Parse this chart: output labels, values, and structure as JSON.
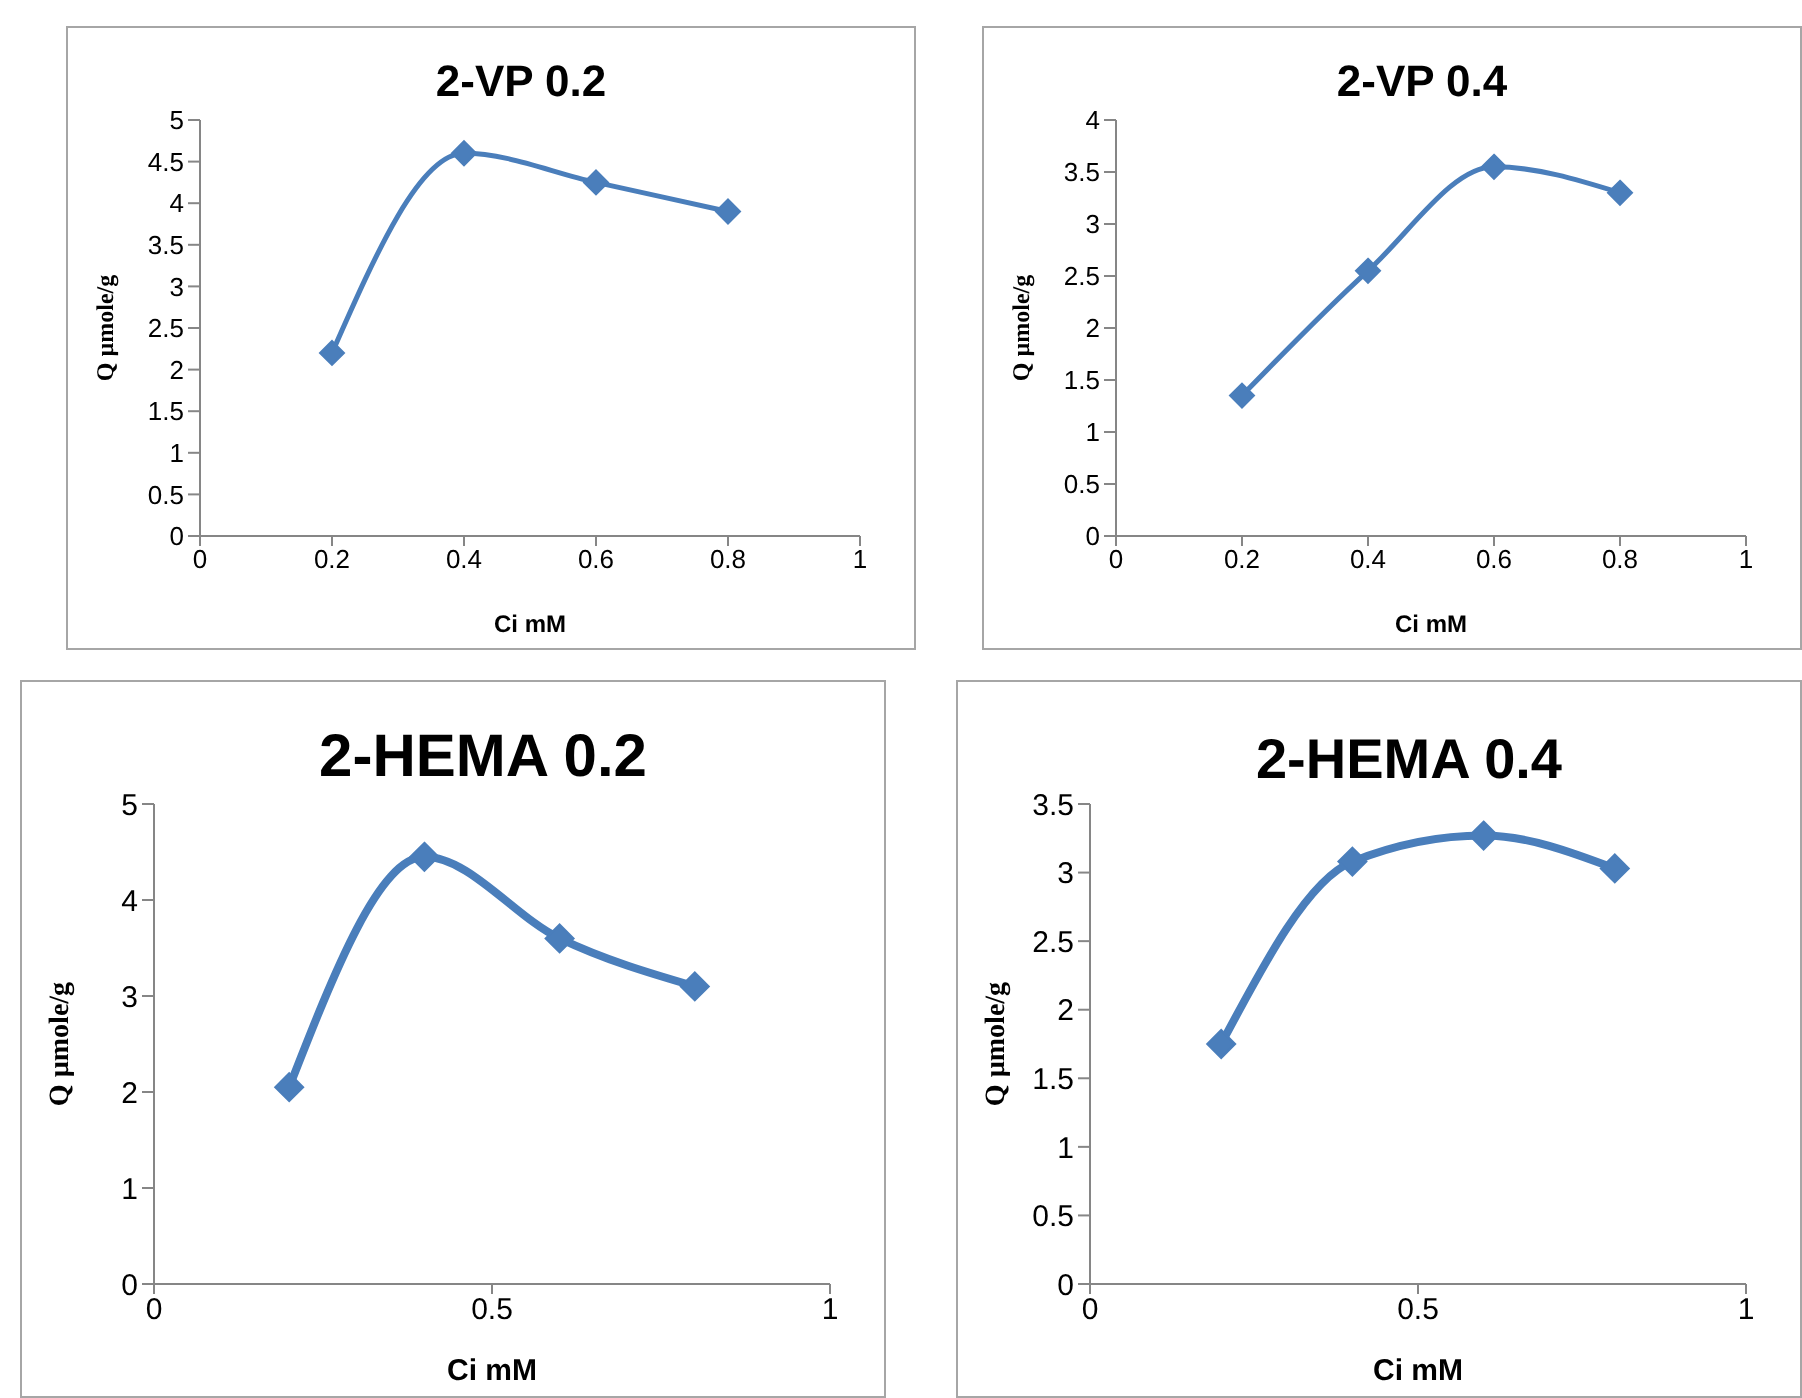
{
  "chart_data": [
    {
      "type": "line",
      "title": "2-VP 0.2",
      "xlabel": "Ci mM",
      "ylabel": "Q µmole/g",
      "x": [
        0.2,
        0.4,
        0.6,
        0.8
      ],
      "series": [
        {
          "color": "#4a7ebb",
          "values": [
            2.2,
            4.6,
            4.25,
            3.9
          ]
        }
      ],
      "xlim": [
        0,
        1
      ],
      "xticks": [
        0,
        0.2,
        0.4,
        0.6,
        0.8,
        1
      ],
      "ylim": [
        0,
        5
      ],
      "yticks": [
        0,
        0.5,
        1,
        1.5,
        2,
        2.5,
        3,
        3.5,
        4,
        4.5,
        5
      ],
      "marker": "diamond",
      "line_style": "solid",
      "grid": false,
      "legend": false
    },
    {
      "type": "line",
      "title": "2-VP 0.4",
      "xlabel": "Ci mM",
      "ylabel": "Q µmole/g",
      "x": [
        0.2,
        0.4,
        0.6,
        0.8
      ],
      "series": [
        {
          "color": "#4a7ebb",
          "values": [
            1.35,
            2.55,
            3.55,
            3.3
          ]
        }
      ],
      "xlim": [
        0,
        1
      ],
      "xticks": [
        0,
        0.2,
        0.4,
        0.6,
        0.8,
        1
      ],
      "ylim": [
        0,
        4
      ],
      "yticks": [
        0,
        0.5,
        1,
        1.5,
        2,
        2.5,
        3,
        3.5,
        4
      ],
      "marker": "diamond",
      "line_style": "solid",
      "grid": false,
      "legend": false
    },
    {
      "type": "line",
      "title": "2-HEMA 0.2",
      "xlabel": "Ci mM",
      "ylabel": "Q µmole/g",
      "x": [
        0.2,
        0.4,
        0.6,
        0.8
      ],
      "series": [
        {
          "color": "#4a7ebb",
          "values": [
            2.05,
            4.45,
            3.6,
            3.1
          ]
        }
      ],
      "xlim": [
        0,
        1
      ],
      "xticks": [
        0,
        0.5,
        1
      ],
      "ylim": [
        0,
        5
      ],
      "yticks": [
        0,
        1,
        2,
        3,
        4,
        5
      ],
      "marker": "diamond",
      "line_style": "solid",
      "grid": false,
      "legend": false
    },
    {
      "type": "line",
      "title": "2-HEMA 0.4",
      "xlabel": "Ci mM",
      "ylabel": "Q µmole/g",
      "x": [
        0.2,
        0.4,
        0.6,
        0.8
      ],
      "series": [
        {
          "color": "#4a7ebb",
          "values": [
            1.75,
            3.08,
            3.27,
            3.03
          ]
        }
      ],
      "xlim": [
        0,
        1
      ],
      "xticks": [
        0,
        0.5,
        1
      ],
      "ylim": [
        0,
        3.5
      ],
      "yticks": [
        0,
        0.5,
        1,
        1.5,
        2,
        2.5,
        3,
        3.5
      ],
      "marker": "diamond",
      "line_style": "solid",
      "grid": false,
      "legend": false
    }
  ]
}
